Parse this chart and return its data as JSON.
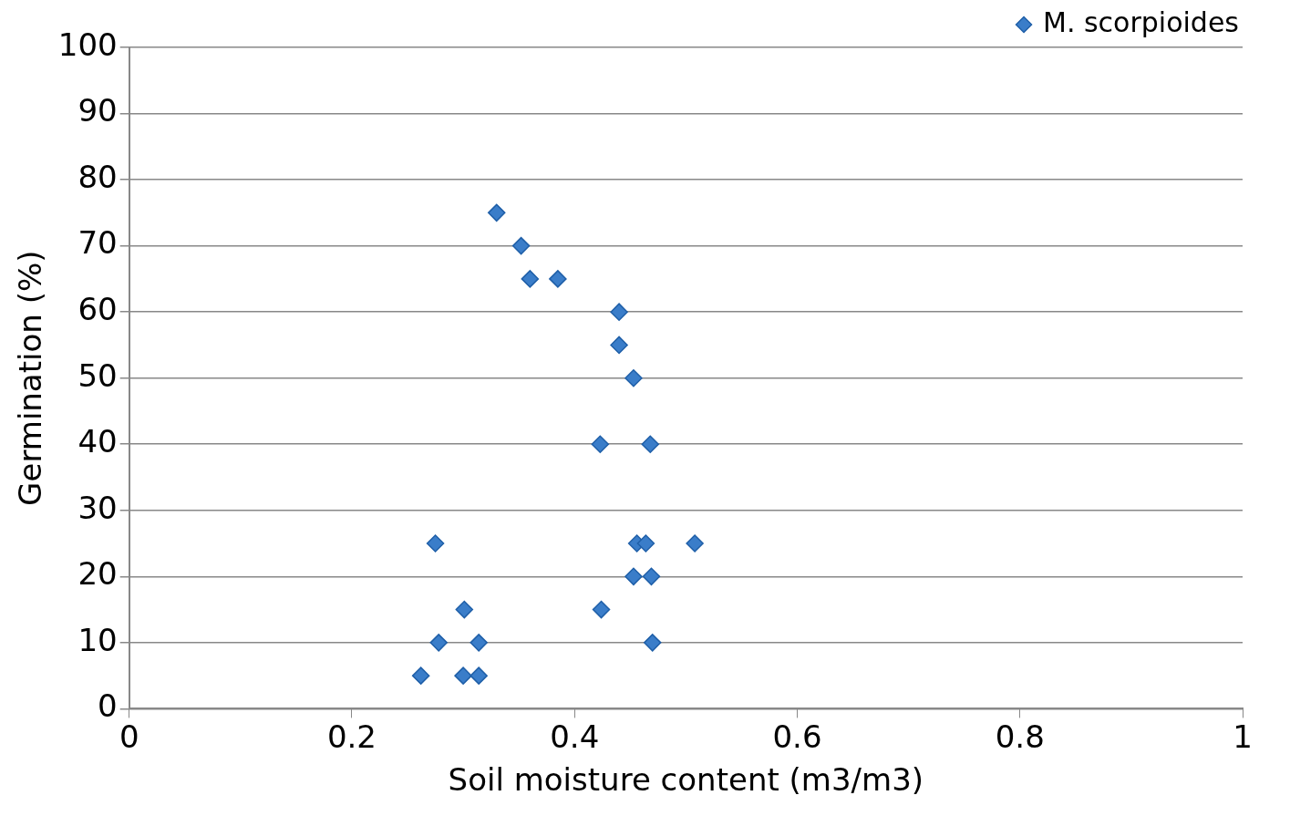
{
  "chart_data": {
    "type": "scatter",
    "xlabel": "Soil moisture content (m3/m3)",
    "ylabel": "Germination (%)",
    "xlim": [
      0,
      1
    ],
    "xticks": [
      0,
      0.2,
      0.4,
      0.6,
      0.8,
      1
    ],
    "ylim": [
      0,
      100
    ],
    "yticks": [
      0,
      10,
      20,
      30,
      40,
      50,
      60,
      70,
      80,
      90,
      100
    ],
    "grid": "y",
    "legend": "top right",
    "marker": "diamond",
    "series": [
      {
        "name": "M. scorpioides",
        "color": "#3a7dc9",
        "x": [
          0.33,
          0.352,
          0.36,
          0.385,
          0.44,
          0.44,
          0.453,
          0.423,
          0.468,
          0.275,
          0.456,
          0.464,
          0.508,
          0.453,
          0.469,
          0.301,
          0.424,
          0.278,
          0.314,
          0.47,
          0.262,
          0.3,
          0.314
        ],
        "values": [
          75,
          70,
          65,
          65,
          60,
          55,
          50,
          40,
          40,
          25,
          25,
          25,
          25,
          20,
          20,
          15,
          15,
          10,
          10,
          10,
          5,
          5,
          5
        ]
      }
    ]
  }
}
